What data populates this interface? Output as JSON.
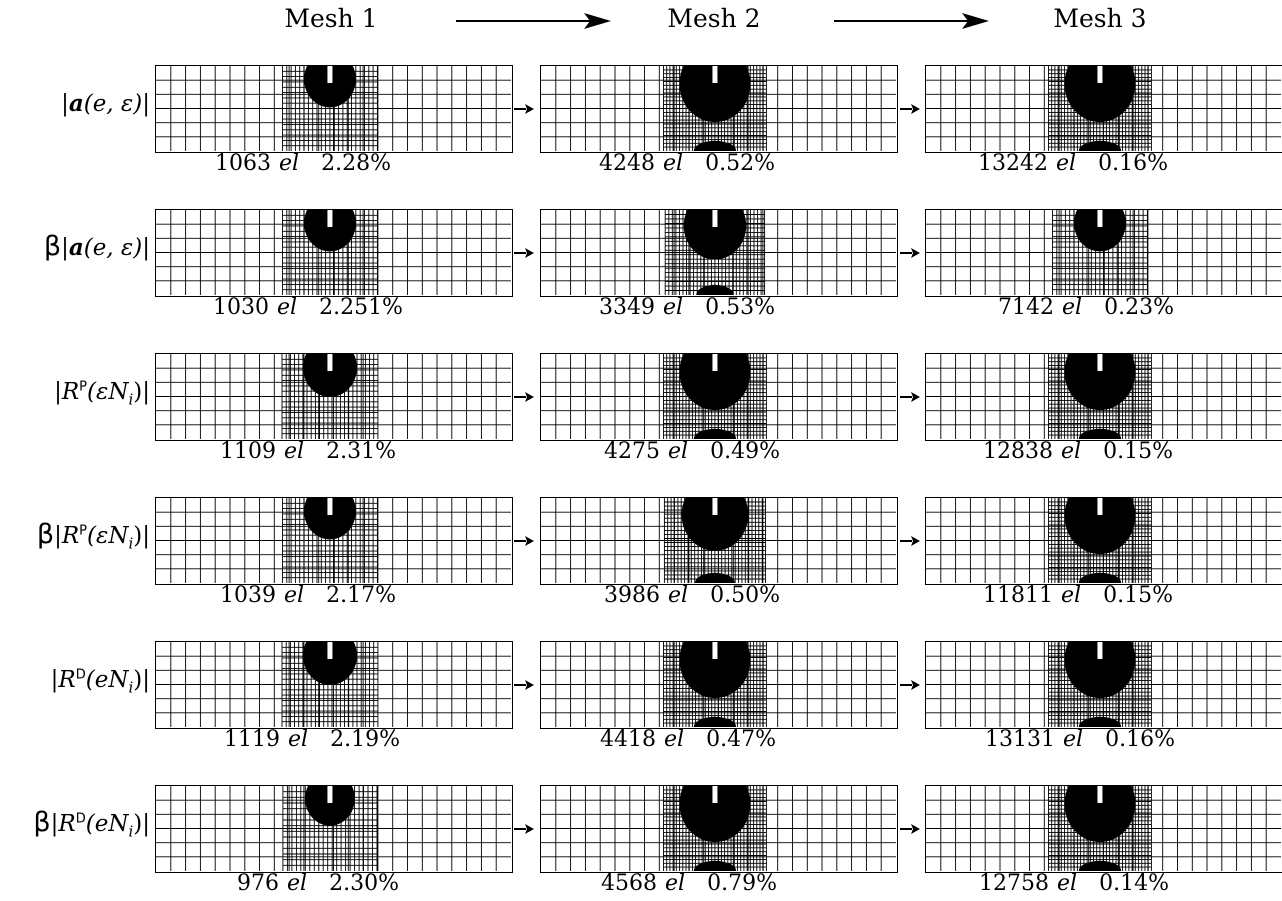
{
  "headers": [
    "Mesh 1",
    "Mesh 2",
    "Mesh 3"
  ],
  "rows": [
    {
      "beta": "",
      "label_pre": "|",
      "label_main": "a",
      "label_args": "(e, ε)|",
      "sup": "",
      "captions": [
        {
          "n": "1063",
          "unit": "el",
          "pct": "2.28%"
        },
        {
          "n": "4248",
          "unit": "el",
          "pct": "0.52%"
        },
        {
          "n": "13242",
          "unit": "el",
          "pct": "0.16%"
        }
      ]
    },
    {
      "beta": "β",
      "label_pre": "|",
      "label_main": "a",
      "label_args": "(e, ε)|",
      "sup": "",
      "captions": [
        {
          "n": "1030",
          "unit": "el",
          "pct": "2.251%"
        },
        {
          "n": "3349",
          "unit": "el",
          "pct": "0.53%"
        },
        {
          "n": "7142",
          "unit": "el",
          "pct": "0.23%"
        }
      ]
    },
    {
      "beta": "",
      "label_pre": "|",
      "label_main": "R",
      "label_args": "(εN",
      "sup": "P",
      "captions": [
        {
          "n": "1109",
          "unit": "el",
          "pct": "2.31%"
        },
        {
          "n": "4275",
          "unit": "el",
          "pct": "0.49%"
        },
        {
          "n": "12838",
          "unit": "el",
          "pct": "0.15%"
        }
      ]
    },
    {
      "beta": "β",
      "label_pre": "|",
      "label_main": "R",
      "label_args": "(εN",
      "sup": "P",
      "captions": [
        {
          "n": "1039",
          "unit": "el",
          "pct": "2.17%"
        },
        {
          "n": "3986",
          "unit": "el",
          "pct": "0.50%"
        },
        {
          "n": "11811",
          "unit": "el",
          "pct": "0.15%"
        }
      ]
    },
    {
      "beta": "",
      "label_pre": "|",
      "label_main": "R",
      "label_args": "(eN",
      "sup": "D",
      "captions": [
        {
          "n": "1119",
          "unit": "el",
          "pct": "2.19%"
        },
        {
          "n": "4418",
          "unit": "el",
          "pct": "0.47%"
        },
        {
          "n": "13131",
          "unit": "el",
          "pct": "0.16%"
        }
      ]
    },
    {
      "beta": "β",
      "label_pre": "|",
      "label_main": "R",
      "label_args": "(eN",
      "sup": "D",
      "captions": [
        {
          "n": "976",
          "unit": "el",
          "pct": "2.30%"
        },
        {
          "n": "4568",
          "unit": "el",
          "pct": "0.79%"
        },
        {
          "n": "12758",
          "unit": "el",
          "pct": "0.14%"
        }
      ]
    }
  ],
  "label_subscript": "i",
  "label_close": ")|"
}
